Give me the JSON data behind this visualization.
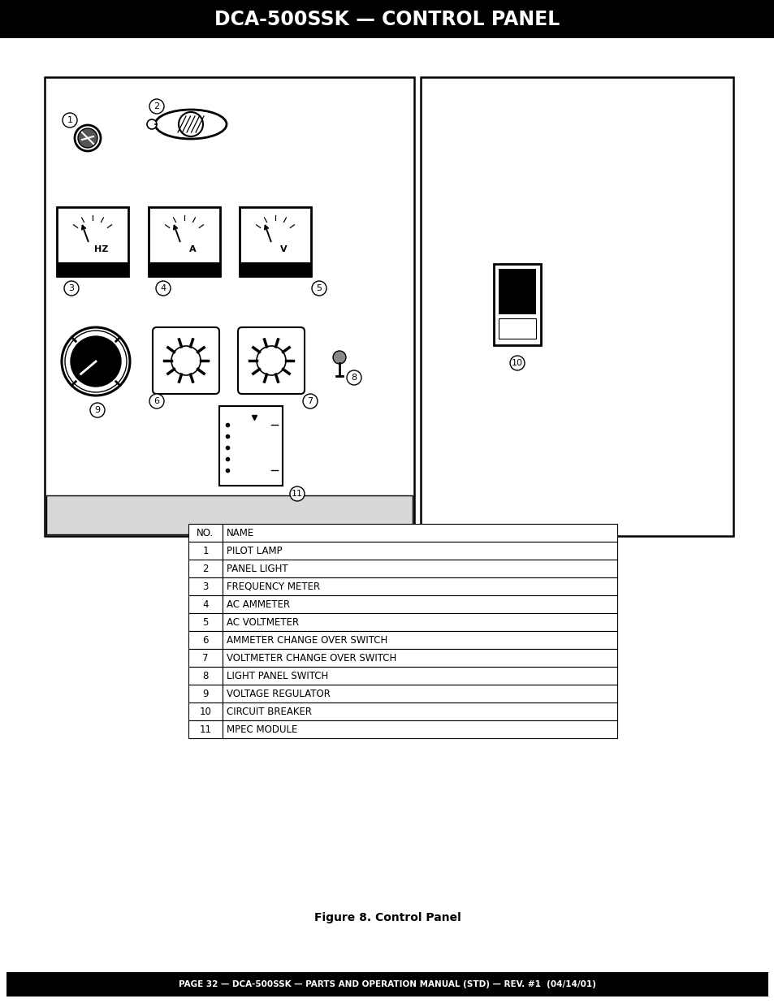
{
  "title": "DCA-500SSK — CONTROL PANEL",
  "footer": "PAGE 32 — DCA-500SSK — PARTS AND OPERATION MANUAL (STD) — REV. #1  (04/14/01)",
  "figure_caption": "Figure 8. Control Panel",
  "table_headers": [
    "NO.",
    "NAME"
  ],
  "table_rows": [
    [
      "1",
      "PILOT LAMP"
    ],
    [
      "2",
      "PANEL LIGHT"
    ],
    [
      "3",
      "FREQUENCY METER"
    ],
    [
      "4",
      "AC AMMETER"
    ],
    [
      "5",
      "AC VOLTMETER"
    ],
    [
      "6",
      "AMMETER CHANGE OVER SWITCH"
    ],
    [
      "7",
      "VOLTMETER CHANGE OVER SWITCH"
    ],
    [
      "8",
      "LIGHT PANEL SWITCH"
    ],
    [
      "9",
      "VOLTAGE REGULATOR"
    ],
    [
      "10",
      "CIRCUIT BREAKER"
    ],
    [
      "11",
      "MPEC MODULE"
    ]
  ],
  "bg_color": "#ffffff",
  "header_bg": "#000000",
  "header_fg": "#ffffff",
  "footer_bg": "#000000",
  "footer_fg": "#ffffff"
}
